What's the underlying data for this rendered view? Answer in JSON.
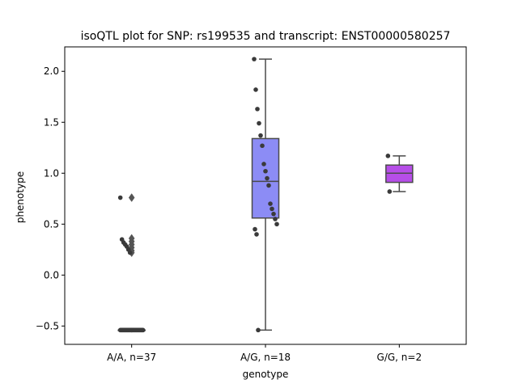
{
  "chart_data": {
    "type": "box",
    "title": "isoQTL plot for SNP: rs199535 and transcript: ENST00000580257",
    "xlabel": "genotype",
    "ylabel": "phenotype",
    "categories": [
      "A/A, n=37",
      "A/G, n=18",
      "G/G, n=2"
    ],
    "ylim": [
      -0.68,
      2.24
    ],
    "yticks": [
      -0.5,
      0.0,
      0.5,
      1.0,
      1.5,
      2.0
    ],
    "ytick_labels": [
      "−0.5",
      "0.0",
      "0.5",
      "1.0",
      "1.5",
      "2.0"
    ],
    "grid": false,
    "colors": {
      "box_A_G": "#8c8cf5",
      "box_G_G": "#b64ee8",
      "edge": "#4a4a4a",
      "point": "#3a3a3a"
    },
    "boxes": [
      {
        "category": "A/A, n=37",
        "q1": -0.54,
        "median": -0.54,
        "q3": -0.54,
        "whisker_low": -0.54,
        "whisker_high": -0.54,
        "outliers": [
          0.76,
          0.36,
          0.33,
          0.3,
          0.27,
          0.24,
          0.22
        ]
      },
      {
        "category": "A/G, n=18",
        "q1": 0.56,
        "median": 0.92,
        "q3": 1.34,
        "whisker_low": -0.54,
        "whisker_high": 2.12,
        "outliers": []
      },
      {
        "category": "G/G, n=2",
        "q1": 0.91,
        "median": 1.0,
        "q3": 1.08,
        "whisker_low": 0.82,
        "whisker_high": 1.17,
        "outliers": []
      }
    ],
    "points": [
      {
        "category": "A/A, n=37",
        "values": [
          0.76,
          0.35,
          0.32,
          0.3,
          0.28,
          0.25,
          0.22,
          -0.54,
          -0.54,
          -0.54,
          -0.54,
          -0.54,
          -0.54,
          -0.54,
          -0.54,
          -0.54,
          -0.54,
          -0.54,
          -0.54,
          -0.54,
          -0.54,
          -0.54,
          -0.54,
          -0.54,
          -0.54,
          -0.54,
          -0.54,
          -0.54,
          -0.54,
          -0.54,
          -0.54,
          -0.54,
          -0.54,
          -0.54,
          -0.54,
          -0.54,
          -0.54
        ]
      },
      {
        "category": "A/G, n=18",
        "values": [
          2.12,
          1.82,
          1.63,
          1.49,
          1.37,
          1.27,
          1.09,
          1.02,
          0.95,
          0.88,
          0.7,
          0.65,
          0.6,
          0.55,
          0.5,
          0.45,
          0.4,
          -0.54
        ]
      },
      {
        "category": "G/G, n=2",
        "values": [
          1.17,
          0.82
        ]
      }
    ]
  }
}
